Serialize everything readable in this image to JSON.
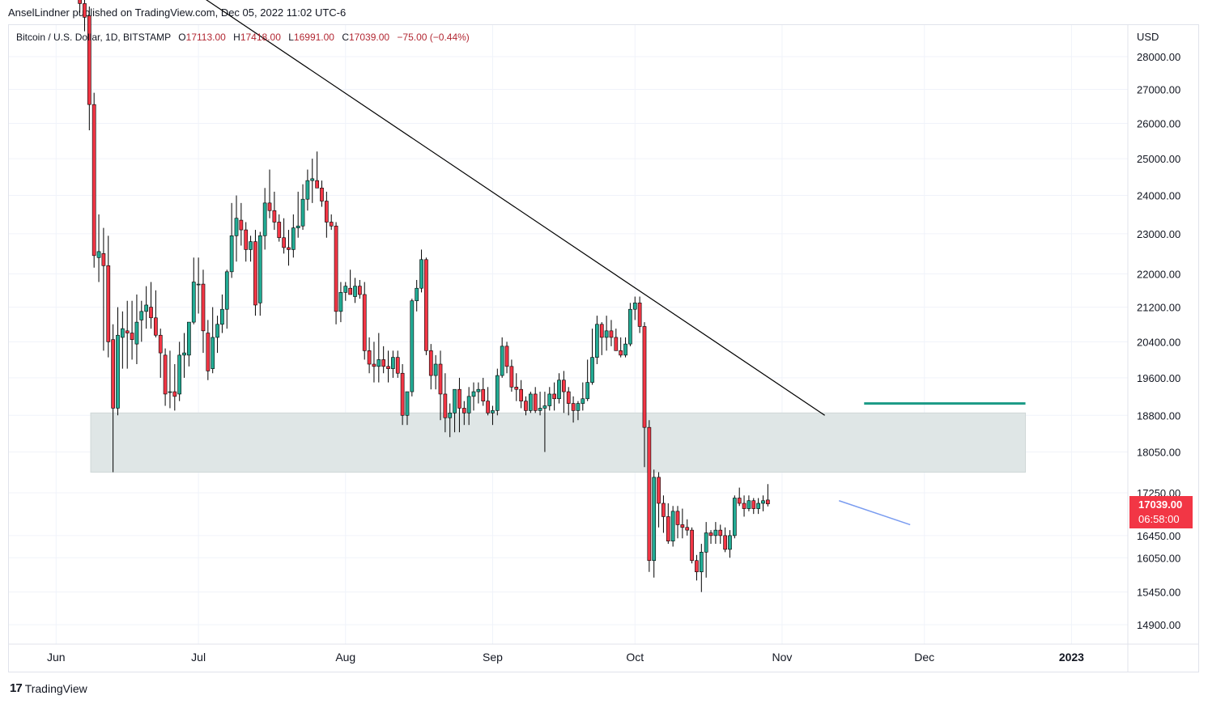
{
  "attribution": "AnselLindner published on TradingView.com, Dec 05, 2022 11:02 UTC-6",
  "brand": "TradingView",
  "legend": {
    "symbol": "Bitcoin / U.S. Dollar, 1D, BITSTAMP",
    "open_label": "O",
    "open": "17113.00",
    "high_label": "H",
    "high": "17418.00",
    "low_label": "L",
    "low": "16991.00",
    "close_label": "C",
    "close": "17039.00",
    "change": "−75.00 (−0.44%)"
  },
  "price_tag": {
    "price": "17039.00",
    "countdown": "06:58:00"
  },
  "colors": {
    "up": "#22ab94",
    "down": "#f23645",
    "zone": "#dfe6e6",
    "target_line": "#1a9a85",
    "trend_line": "#000000",
    "short_trend": "#7a9cf0",
    "tag": "#f23645"
  },
  "chart_data": {
    "type": "candlestick",
    "currency_label": "USD",
    "y_tick_labels": [
      "28000.00",
      "27000.00",
      "26000.00",
      "25000.00",
      "24000.00",
      "23000.00",
      "22000.00",
      "21200.00",
      "20400.00",
      "19600.00",
      "18800.00",
      "18050.00",
      "17250.00",
      "16450.00",
      "16050.00",
      "15450.00",
      "14900.00"
    ],
    "y_ticks": [
      28000,
      27000,
      26000,
      25000,
      24000,
      23000,
      22000,
      21200,
      20400,
      19600,
      18800,
      18050,
      17250,
      16450,
      16050,
      15450,
      14900
    ],
    "x_tick_labels": [
      "Jun",
      "Jul",
      "Aug",
      "Sep",
      "Oct",
      "Nov",
      "Dec",
      "2023"
    ],
    "x_range": [
      "2022-05-27",
      "2023-01-04"
    ],
    "y_scale": "log",
    "support_zone": {
      "from": 17650,
      "to": 18850,
      "start": "2022-06-10",
      "end": "2022-12-24"
    },
    "resistance_level": {
      "price": 19050,
      "start": "2022-11-20",
      "end": "2022-12-24"
    },
    "trend_line": {
      "start": [
        "2022-07-01",
        30000
      ],
      "end": [
        "2022-11-10",
        18800
      ]
    },
    "short_trend_line": {
      "start": [
        "2022-11-13",
        17100
      ],
      "end": [
        "2022-11-28",
        16650
      ]
    },
    "candles_ohlc": [
      [
        29900,
        30200,
        29400,
        29700
      ],
      [
        29700,
        29950,
        28800,
        29250
      ],
      [
        29300,
        29600,
        25800,
        26550
      ],
      [
        26550,
        26900,
        22150,
        22450
      ],
      [
        22400,
        23500,
        21800,
        22550
      ],
      [
        22500,
        23150,
        20200,
        22200
      ],
      [
        22200,
        22950,
        20050,
        20400
      ],
      [
        20450,
        20800,
        17650,
        18950
      ],
      [
        18950,
        21200,
        18800,
        20550
      ],
      [
        20500,
        21100,
        19800,
        20700
      ],
      [
        20650,
        21350,
        19800,
        20600
      ],
      [
        20600,
        21350,
        20000,
        20450
      ],
      [
        20350,
        21500,
        19900,
        20850
      ],
      [
        20900,
        21350,
        20400,
        21100
      ],
      [
        21100,
        21700,
        20700,
        21250
      ],
      [
        21200,
        21800,
        20700,
        20950
      ],
      [
        20950,
        21600,
        20500,
        20550
      ],
      [
        20550,
        20700,
        19600,
        20150
      ],
      [
        20100,
        20250,
        19000,
        19250
      ],
      [
        19300,
        20200,
        18950,
        19300
      ],
      [
        19300,
        19900,
        18900,
        19200
      ],
      [
        19250,
        20400,
        19100,
        20100
      ],
      [
        20100,
        20600,
        19600,
        20150
      ],
      [
        20100,
        20800,
        19850,
        20850
      ],
      [
        20850,
        22400,
        20800,
        21800
      ],
      [
        21750,
        22400,
        21050,
        21750
      ],
      [
        21750,
        22100,
        20150,
        20650
      ],
      [
        20600,
        20900,
        19550,
        19750
      ],
      [
        19800,
        21200,
        19700,
        20500
      ],
      [
        20500,
        21000,
        20150,
        20800
      ],
      [
        20800,
        21500,
        20600,
        21150
      ],
      [
        21150,
        22100,
        20700,
        22050
      ],
      [
        22050,
        23800,
        21900,
        22950
      ],
      [
        22950,
        24000,
        22300,
        23400
      ],
      [
        23350,
        23800,
        22700,
        23100
      ],
      [
        23100,
        23300,
        22300,
        22600
      ],
      [
        22600,
        22950,
        22300,
        22800
      ],
      [
        22800,
        23100,
        21000,
        21250
      ],
      [
        21300,
        23050,
        21000,
        22950
      ],
      [
        22950,
        24200,
        22600,
        23800
      ],
      [
        23800,
        24700,
        23400,
        23600
      ],
      [
        23600,
        24100,
        23100,
        23300
      ],
      [
        23300,
        23500,
        22800,
        22900
      ],
      [
        22900,
        23400,
        22500,
        22650
      ],
      [
        22650,
        23100,
        22200,
        22600
      ],
      [
        22600,
        23500,
        22400,
        23150
      ],
      [
        23150,
        24100,
        22900,
        23200
      ],
      [
        23200,
        24300,
        23100,
        23900
      ],
      [
        23900,
        24700,
        23600,
        24400
      ],
      [
        24400,
        25000,
        23800,
        24450
      ],
      [
        24400,
        25200,
        24200,
        24200
      ],
      [
        24200,
        24400,
        23700,
        23850
      ],
      [
        23850,
        24100,
        22900,
        23300
      ],
      [
        23300,
        23500,
        23100,
        23200
      ],
      [
        23200,
        23300,
        20800,
        21100
      ],
      [
        21100,
        21800,
        20850,
        21550
      ],
      [
        21550,
        21800,
        21350,
        21700
      ],
      [
        21650,
        22100,
        21500,
        21500
      ],
      [
        21450,
        21900,
        21300,
        21700
      ],
      [
        21700,
        21850,
        21400,
        21500
      ],
      [
        21500,
        21800,
        20000,
        20200
      ],
      [
        20200,
        20500,
        19700,
        19900
      ],
      [
        19900,
        20400,
        19500,
        19850
      ],
      [
        19850,
        20600,
        19500,
        20000
      ],
      [
        20000,
        20300,
        19700,
        19850
      ],
      [
        19850,
        20200,
        19500,
        19800
      ],
      [
        19800,
        20200,
        19600,
        20050
      ],
      [
        20050,
        20200,
        19600,
        19700
      ],
      [
        19700,
        19900,
        18600,
        18800
      ],
      [
        18800,
        19300,
        18600,
        19300
      ],
      [
        19300,
        21400,
        19200,
        21350
      ],
      [
        21350,
        21850,
        21100,
        21650
      ],
      [
        21650,
        22600,
        21550,
        22350
      ],
      [
        22350,
        22400,
        20100,
        20200
      ],
      [
        20200,
        20350,
        19350,
        19650
      ],
      [
        19650,
        20100,
        19350,
        19900
      ],
      [
        19900,
        20200,
        18700,
        19250
      ],
      [
        19250,
        19700,
        18450,
        18750
      ],
      [
        18750,
        19050,
        18350,
        18850
      ],
      [
        18850,
        19300,
        18450,
        19350
      ],
      [
        19350,
        19600,
        18450,
        18950
      ],
      [
        18950,
        19100,
        18600,
        18850
      ],
      [
        18850,
        19400,
        18600,
        19200
      ],
      [
        19200,
        19500,
        18900,
        19300
      ],
      [
        19300,
        19500,
        19050,
        19350
      ],
      [
        19350,
        19600,
        19000,
        19100
      ],
      [
        19100,
        19400,
        18800,
        18850
      ],
      [
        18850,
        19000,
        18600,
        18900
      ],
      [
        18900,
        19800,
        18800,
        19650
      ],
      [
        19650,
        20500,
        19600,
        20300
      ],
      [
        20300,
        20400,
        19700,
        19850
      ],
      [
        19850,
        20000,
        19300,
        19400
      ],
      [
        19400,
        19700,
        19100,
        19350
      ],
      [
        19350,
        19550,
        18950,
        19100
      ],
      [
        19100,
        19200,
        18800,
        18900
      ],
      [
        18900,
        19300,
        18850,
        19250
      ],
      [
        19250,
        19400,
        18850,
        18900
      ],
      [
        18900,
        19300,
        18800,
        18950
      ],
      [
        18950,
        19300,
        18050,
        19000
      ],
      [
        19000,
        19400,
        18900,
        19250
      ],
      [
        19250,
        19500,
        18900,
        19150
      ],
      [
        19150,
        19700,
        19050,
        19550
      ],
      [
        19550,
        19750,
        18850,
        19300
      ],
      [
        19300,
        19400,
        18800,
        19050
      ],
      [
        19050,
        19200,
        18650,
        18900
      ],
      [
        18900,
        19100,
        18700,
        19050
      ],
      [
        19050,
        19500,
        18900,
        19150
      ],
      [
        19150,
        20000,
        19100,
        19500
      ],
      [
        19500,
        20700,
        19450,
        20050
      ],
      [
        20050,
        21000,
        19900,
        20800
      ],
      [
        20800,
        20850,
        20100,
        20500
      ],
      [
        20500,
        21000,
        20200,
        20650
      ],
      [
        20650,
        20900,
        20300,
        20500
      ],
      [
        20500,
        20700,
        20200,
        20200
      ],
      [
        20200,
        20500,
        20050,
        20100
      ],
      [
        20100,
        20500,
        20050,
        20350
      ],
      [
        20350,
        21300,
        20300,
        21150
      ],
      [
        21150,
        21450,
        20900,
        21300
      ],
      [
        21300,
        21450,
        20600,
        20750
      ],
      [
        20750,
        20850,
        17750,
        18550
      ],
      [
        18550,
        18700,
        15800,
        16000
      ],
      [
        16000,
        17700,
        15700,
        17550
      ],
      [
        17550,
        17650,
        16600,
        17050
      ],
      [
        17050,
        17200,
        16500,
        16800
      ],
      [
        16800,
        17050,
        16300,
        16350
      ],
      [
        16350,
        17000,
        16250,
        16900
      ],
      [
        16900,
        17000,
        16400,
        16650
      ],
      [
        16650,
        16950,
        16400,
        16600
      ],
      [
        16600,
        16750,
        16450,
        16550
      ],
      [
        16550,
        16600,
        15950,
        16000
      ],
      [
        16000,
        16100,
        15650,
        15800
      ],
      [
        15800,
        16300,
        15450,
        16150
      ],
      [
        16150,
        16700,
        15700,
        16500
      ],
      [
        16500,
        16550,
        16300,
        16450
      ],
      [
        16450,
        16700,
        16300,
        16550
      ],
      [
        16550,
        16650,
        16300,
        16450
      ],
      [
        16450,
        16600,
        16150,
        16200
      ],
      [
        16200,
        16550,
        16050,
        16450
      ],
      [
        16450,
        17200,
        16400,
        17150
      ],
      [
        17150,
        17350,
        17000,
        17050
      ],
      [
        17050,
        17200,
        16800,
        16950
      ],
      [
        16950,
        17200,
        16900,
        17100
      ],
      [
        17100,
        17150,
        16850,
        16950
      ],
      [
        16950,
        17150,
        16850,
        17050
      ],
      [
        17050,
        17200,
        16900,
        17100
      ],
      [
        17113,
        17418,
        16991,
        17039
      ]
    ]
  }
}
